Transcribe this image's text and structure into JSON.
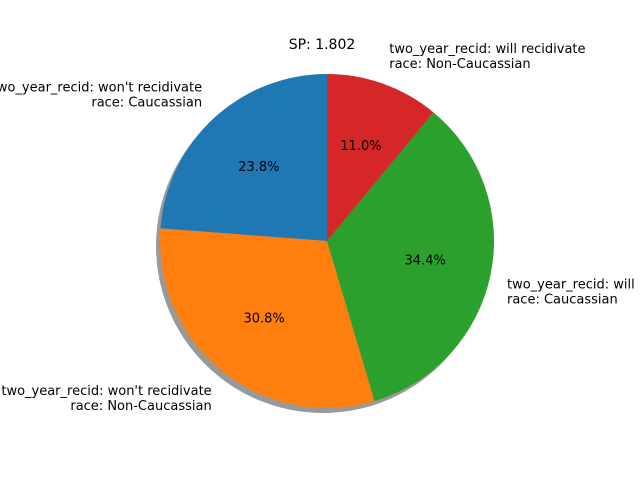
{
  "chart_data": {
    "type": "pie",
    "title": "SP: 1.802",
    "slices": [
      {
        "label_lines": [
          "two_year_recid: won't recidivate",
          "race: Caucassian"
        ],
        "value": 23.8,
        "pct_label": "23.8%",
        "color": "#1f77b4"
      },
      {
        "label_lines": [
          "two_year_recid: won't recidivate",
          "race: Non-Caucassian"
        ],
        "value": 30.8,
        "pct_label": "30.8%",
        "color": "#ff7f0e"
      },
      {
        "label_lines": [
          "two_year_recid: will recidivate",
          "race: Caucassian"
        ],
        "value": 34.4,
        "pct_label": "34.4%",
        "color": "#2ca02c"
      },
      {
        "label_lines": [
          "two_year_recid: will recidivate",
          "race: Non-Caucassian"
        ],
        "value": 11.0,
        "pct_label": "11.0%",
        "color": "#d62728"
      }
    ],
    "start_angle_deg": 90,
    "direction": "counterclockwise",
    "shadow": true,
    "legend": "none"
  }
}
